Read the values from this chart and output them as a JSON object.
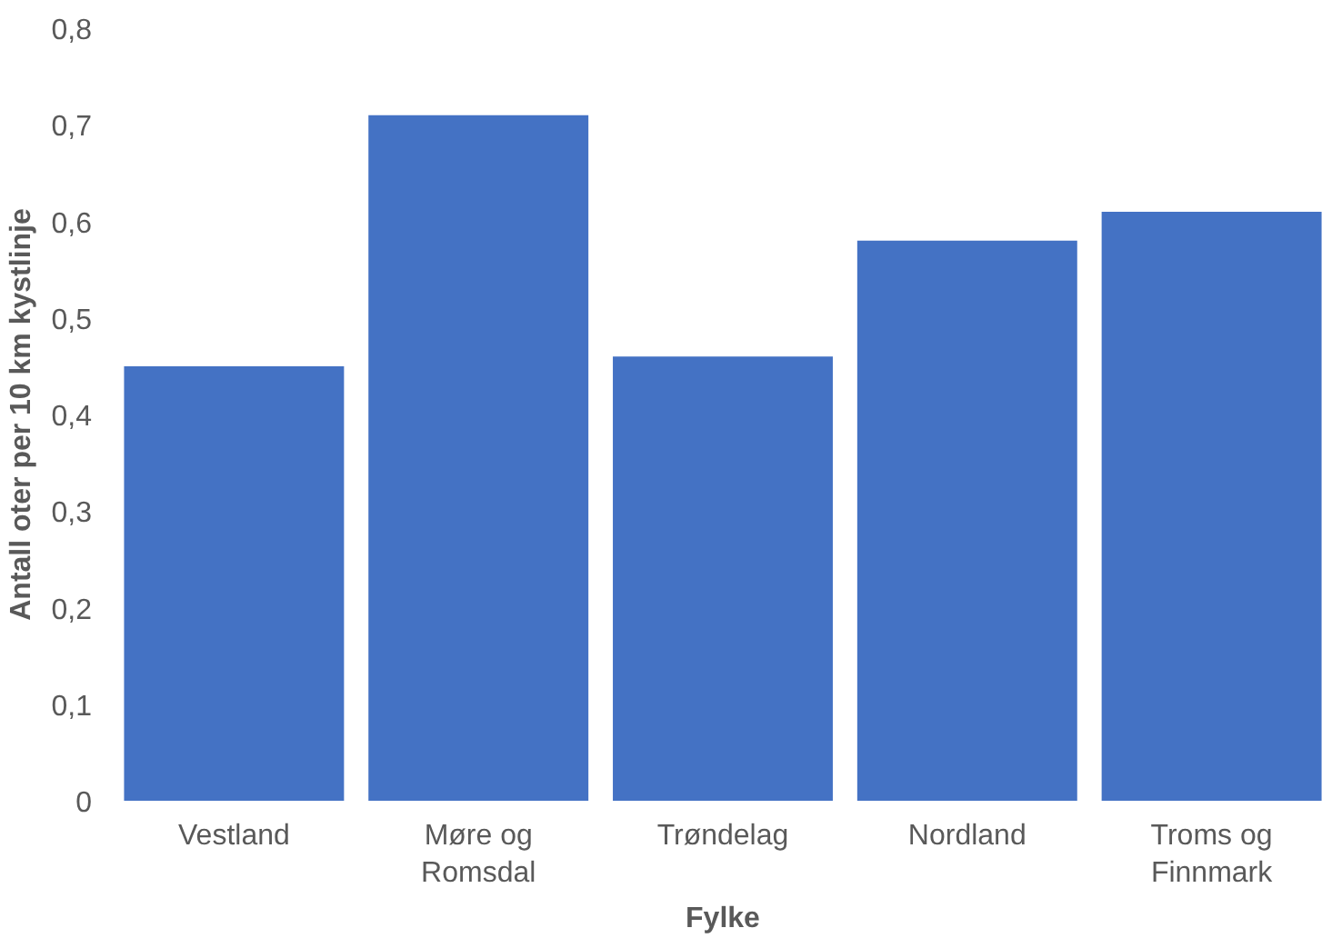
{
  "chart_data": {
    "type": "bar",
    "xlabel": "Fylke",
    "ylabel": "Antall oter per 10 km kystlinje",
    "categories": [
      "Vestland",
      "Møre og\nRomsdal",
      "Trøndelag",
      "Nordland",
      "Troms og\nFinnmark"
    ],
    "values": [
      0.45,
      0.71,
      0.46,
      0.58,
      0.61
    ],
    "color": "#4472c4",
    "ylim": [
      0,
      0.8
    ],
    "yticks": [
      0,
      {
        "value": 0.1,
        "label": "0,1"
      },
      {
        "value": 0.2,
        "label": "0,2"
      },
      {
        "value": 0.3,
        "label": "0,3"
      },
      {
        "value": 0.4,
        "label": "0,4"
      },
      {
        "value": 0.5,
        "label": "0,5"
      },
      {
        "value": 0.6,
        "label": "0,6"
      },
      {
        "value": 0.7,
        "label": "0,7"
      },
      {
        "value": 0.8,
        "label": "0,8"
      }
    ],
    "grid": false
  }
}
